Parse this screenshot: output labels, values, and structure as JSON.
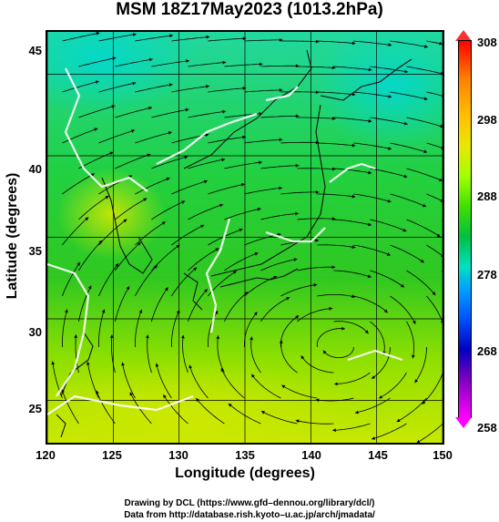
{
  "title": "MSM 18Z17May2023 (1013.2hPa)",
  "x_axis": {
    "label": "Longitude (degrees)",
    "ticks": [
      "120",
      "125",
      "130",
      "135",
      "140",
      "145",
      "150"
    ]
  },
  "y_axis": {
    "label": "Latitude  (degrees)",
    "ticks": [
      "45",
      "40",
      "35",
      "30",
      "25"
    ]
  },
  "colorbar": {
    "ticks": [
      "308",
      "298",
      "288",
      "278",
      "268",
      "258"
    ]
  },
  "credits": {
    "line1": "Drawing by DCL (https://www.gfd–dennou.org/library/dcl/)",
    "line2": "Data from http://database.rish.kyoto–u.ac.jp/arch/jmadata/"
  },
  "chart_data": {
    "type": "heatmap",
    "title": "MSM 18Z17May2023 (1013.2hPa)",
    "xlabel": "Longitude (degrees)",
    "ylabel": "Latitude  (degrees)",
    "xlim": [
      120,
      150
    ],
    "ylim": [
      22.4,
      47.6
    ],
    "x_ticks": [
      120,
      125,
      130,
      135,
      140,
      145,
      150
    ],
    "y_ticks": [
      25,
      30,
      35,
      40,
      45
    ],
    "colorbar_range": [
      258,
      308
    ],
    "colorbar_ticks": [
      258,
      268,
      278,
      288,
      298,
      308
    ],
    "grid": true,
    "overlay": "streamlines"
  }
}
